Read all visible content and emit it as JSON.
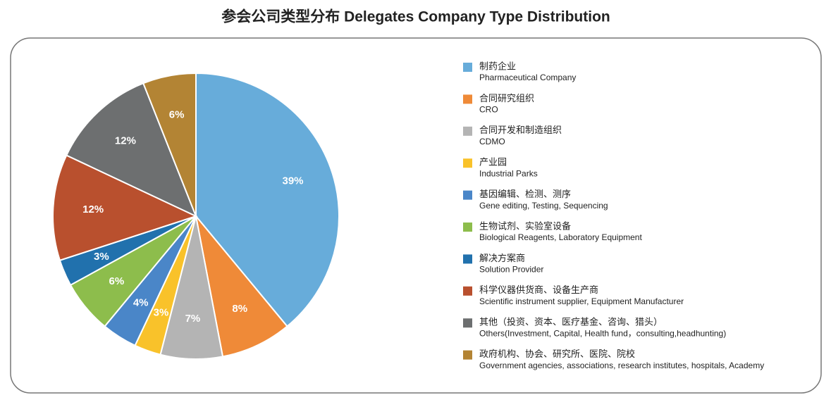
{
  "chart_data": {
    "type": "pie",
    "title": "参会公司类型分布 Delegates Company Type Distribution",
    "categories": [
      "制药企业",
      "合同研究组织",
      "合同开发和制造组织",
      "产业园",
      "基因编辑、检测、测序",
      "生物试剂、实验室设备",
      "解决方案商",
      "科学仪器供货商、设备生产商",
      "其他（投资、资本、医疗基金、咨询、猎头）",
      "政府机构、协会、研究所、医院、院校"
    ],
    "categories_en": [
      "Pharmaceutical Company",
      "CRO",
      "CDMO",
      "Industrial Parks",
      "Gene editing, Testing, Sequencing",
      "Biological Reagents, Laboratory Equipment",
      "Solution Provider",
      "Scientific instrument supplier, Equipment Manufacturer",
      "Others(Investment, Capital, Health fund，consulting,headhunting)",
      "Government agencies, associations, research institutes, hospitals, Academy"
    ],
    "values": [
      39,
      8,
      7,
      3,
      4,
      6,
      3,
      12,
      12,
      6
    ],
    "value_labels": [
      "39%",
      "8%",
      "7%",
      "3%",
      "4%",
      "6%",
      "3%",
      "12%",
      "12%",
      "6%"
    ],
    "colors": [
      "#67acda",
      "#ef8a38",
      "#b4b4b4",
      "#f9c22a",
      "#4a86c8",
      "#8dbd4c",
      "#2171ad",
      "#b9502e",
      "#6d6f70",
      "#b38434"
    ]
  }
}
